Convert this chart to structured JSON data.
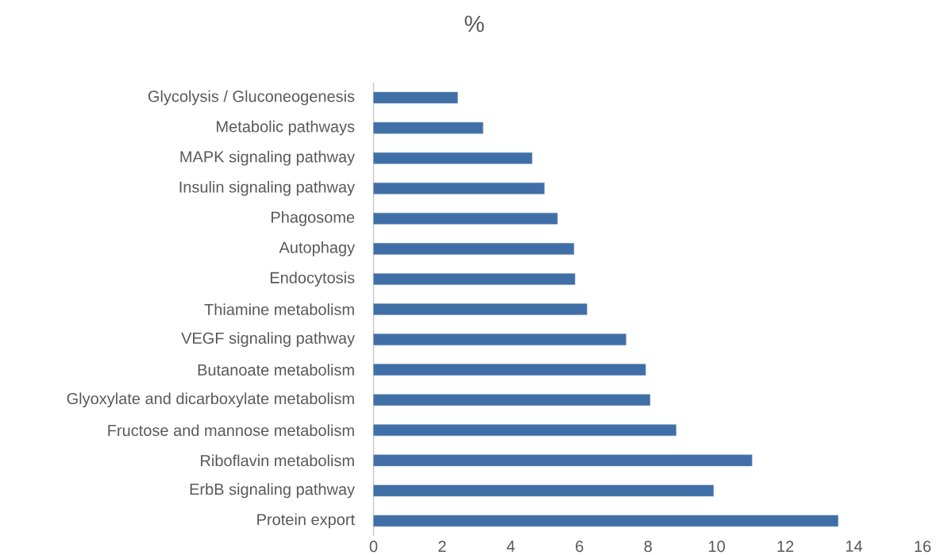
{
  "chart_data": {
    "type": "bar",
    "orientation": "horizontal",
    "title": "%",
    "categories": [
      "Glycolysis / Gluconeogenesis",
      "Metabolic pathways",
      "MAPK signaling pathway",
      "Insulin signaling pathway",
      "Phagosome",
      "Autophagy",
      "Endocytosis",
      "Thiamine metabolism",
      "VEGF signaling pathway",
      "Butanoate metabolism",
      "Glyoxylate and dicarboxylate metabolism",
      "Fructose and mannose metabolism",
      "Riboflavin metabolism",
      "ErbB signaling pathway",
      "Protein export"
    ],
    "values": [
      2.45,
      3.19,
      4.62,
      4.98,
      5.36,
      5.84,
      5.87,
      6.22,
      7.36,
      7.93,
      8.06,
      8.82,
      11.03,
      9.91,
      13.54
    ],
    "color": "#3f6fa6",
    "xlim": [
      0,
      16
    ],
    "xticks": [
      0,
      2,
      4,
      6,
      8,
      10,
      12,
      14,
      16
    ]
  }
}
